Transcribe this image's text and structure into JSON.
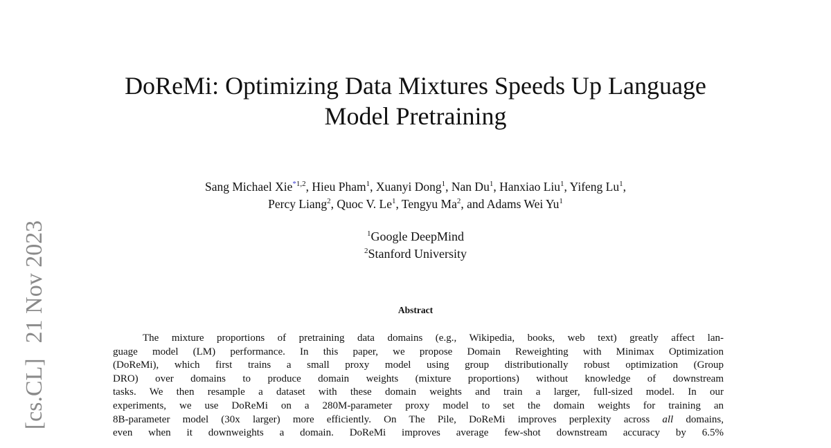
{
  "arxiv_stamp": {
    "category": "[cs.CL]",
    "date": "21 Nov 2023"
  },
  "title": {
    "line1": "DoReMi: Optimizing Data Mixtures Speeds Up Language",
    "line2": "Model Pretraining"
  },
  "authors": [
    {
      "name": "Sang Michael Xie",
      "mark": "*",
      "sup": "1,2"
    },
    {
      "name": "Hieu Pham",
      "sup": "1"
    },
    {
      "name": "Xuanyi Dong",
      "sup": "1"
    },
    {
      "name": "Nan Du",
      "sup": "1"
    },
    {
      "name": "Hanxiao Liu",
      "sup": "1"
    },
    {
      "name": "Yifeng Lu",
      "sup": "1"
    },
    {
      "name": "Percy Liang",
      "sup": "2"
    },
    {
      "name": "Quoc V. Le",
      "sup": "1"
    },
    {
      "name": "Tengyu Ma",
      "sup": "2"
    },
    {
      "name": "Adams Wei Yu",
      "sup": "1"
    }
  ],
  "affiliations": [
    {
      "sup": "1",
      "name": "Google DeepMind"
    },
    {
      "sup": "2",
      "name": "Stanford University"
    }
  ],
  "abstract": {
    "heading": "Abstract",
    "lines": [
      "The mixture proportions of pretraining data domains (e.g., Wikipedia, books, web text) greatly affect lan-",
      "guage model (LM) performance. In this paper, we propose Domain Reweighting with Minimax Optimization",
      "(DoReMi), which first trains a small proxy model using group distributionally robust optimization (Group",
      "DRO) over domains to produce domain weights (mixture proportions) without knowledge of downstream",
      "tasks. We then resample a dataset with these domain weights and train a larger, full-sized model. In our",
      "experiments, we use DoReMi on a 280M-parameter proxy model to set the domain weights for training an"
    ],
    "line7": {
      "before": "8B-parameter model (30x larger) more efficiently. On The Pile, DoReMi improves perplexity across ",
      "italic": "all",
      "after": " domains,"
    },
    "line8": "even when it downweights a domain. DoReMi improves average few-shot downstream accuracy by 6.5%"
  }
}
